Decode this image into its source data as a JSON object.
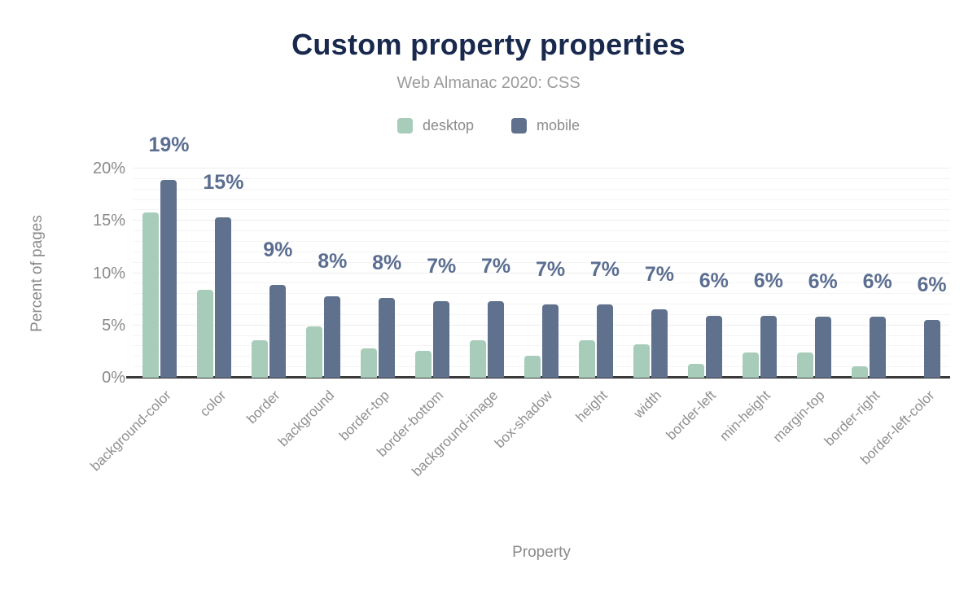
{
  "header": {
    "title": "Custom property properties",
    "subtitle": "Web Almanac 2020: CSS"
  },
  "legend": [
    {
      "label": "desktop",
      "color": "#a7ccba"
    },
    {
      "label": "mobile",
      "color": "#5f718d"
    }
  ],
  "axes": {
    "y_title": "Percent of pages",
    "x_title": "Property",
    "y_ticks": [
      {
        "label": "0%",
        "value": 0
      },
      {
        "label": "5%",
        "value": 5
      },
      {
        "label": "10%",
        "value": 10
      },
      {
        "label": "15%",
        "value": 15
      },
      {
        "label": "20%",
        "value": 20
      }
    ]
  },
  "chart_data": {
    "type": "bar",
    "title": "Custom property properties",
    "subtitle": "Web Almanac 2020: CSS",
    "xlabel": "Property",
    "ylabel": "Percent of pages",
    "ylim": [
      0,
      20
    ],
    "y_tick_step": 5,
    "minor_gridline_step": 1,
    "grid": true,
    "legend_position": "top",
    "categories": [
      "background-color",
      "color",
      "border",
      "background",
      "border-top",
      "border-bottom",
      "background-image",
      "box-shadow",
      "height",
      "width",
      "border-left",
      "min-height",
      "margin-top",
      "border-right",
      "border-left-color"
    ],
    "series": [
      {
        "name": "desktop",
        "color": "#a7ccba",
        "values": [
          15.8,
          8.4,
          3.6,
          4.9,
          2.8,
          2.6,
          3.6,
          2.1,
          3.6,
          3.2,
          1.3,
          2.4,
          2.4,
          1.1,
          0
        ]
      },
      {
        "name": "mobile",
        "color": "#5f718d",
        "values": [
          18.9,
          15.3,
          8.9,
          7.8,
          7.6,
          7.3,
          7.3,
          7.0,
          7.0,
          6.5,
          5.9,
          5.9,
          5.8,
          5.8,
          5.5
        ],
        "data_labels": [
          "19%",
          "15%",
          "9%",
          "8%",
          "8%",
          "7%",
          "7%",
          "7%",
          "7%",
          "7%",
          "6%",
          "6%",
          "6%",
          "6%",
          "6%"
        ]
      }
    ]
  },
  "colors": {
    "title": "#19294d",
    "subtitle": "#9b9b9b",
    "legend_text": "#8c8c8c",
    "axis_text": "#8a8a8a",
    "x_tick_text": "#8f8f8f",
    "data_label": "#5b6e91",
    "gridline": "#f4f4f4",
    "axis_line": "#3a3a3a"
  }
}
